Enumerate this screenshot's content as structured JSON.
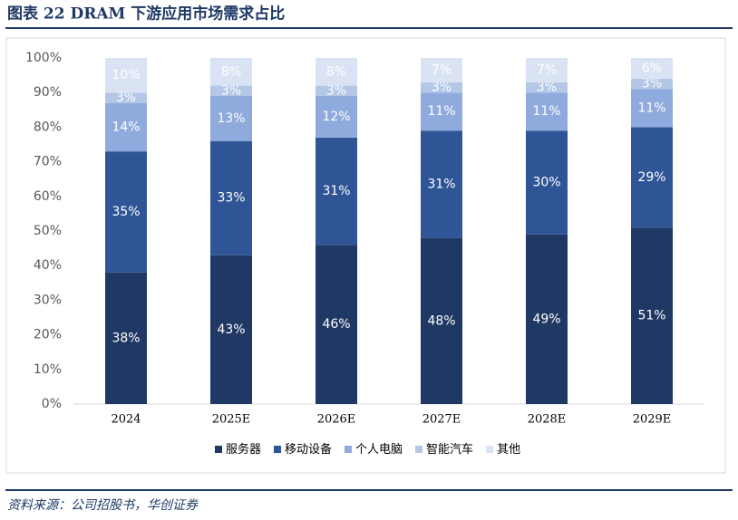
{
  "chart_data": {
    "type": "stacked_bar",
    "title": "图表 22  DRAM 下游应用市场需求占比",
    "source": "资料来源：公司招股书，华创证券",
    "categories": [
      "2024",
      "2025E",
      "2026E",
      "2027E",
      "2028E",
      "2029E"
    ],
    "series": [
      {
        "name": "服务器",
        "color": "#1f3864",
        "values": [
          38,
          43,
          46,
          48,
          49,
          51
        ],
        "value_labels": [
          "38%",
          "43%",
          "46%",
          "48%",
          "49%",
          "51%"
        ]
      },
      {
        "name": "移动设备",
        "color": "#2f5597",
        "values": [
          35,
          33,
          31,
          31,
          30,
          29
        ],
        "value_labels": [
          "35%",
          "33%",
          "31%",
          "31%",
          "30%",
          "29%"
        ]
      },
      {
        "name": "个人电脑",
        "color": "#8faadc",
        "values": [
          14,
          13,
          12,
          11,
          11,
          11
        ],
        "value_labels": [
          "14%",
          "13%",
          "12%",
          "11%",
          "11%",
          "11%"
        ]
      },
      {
        "name": "智能汽车",
        "color": "#b4c7e7",
        "values": [
          3,
          3,
          3,
          3,
          3,
          3
        ],
        "value_labels": [
          "3%",
          "3%",
          "3%",
          "3%",
          "3%",
          "3%"
        ]
      },
      {
        "name": "其他",
        "color": "#dae3f3",
        "values": [
          10,
          8,
          8,
          7,
          7,
          6
        ],
        "value_labels": [
          "10%",
          "8%",
          "8%",
          "7%",
          "7%",
          "6%"
        ]
      }
    ],
    "ylim": [
      0,
      100
    ],
    "yticks": [
      {
        "value": 0,
        "label": "0%"
      },
      {
        "value": 10,
        "label": "10%"
      },
      {
        "value": 20,
        "label": "20%"
      },
      {
        "value": 30,
        "label": "30%"
      },
      {
        "value": 40,
        "label": "40%"
      },
      {
        "value": 50,
        "label": "50%"
      },
      {
        "value": 60,
        "label": "60%"
      },
      {
        "value": 70,
        "label": "70%"
      },
      {
        "value": 80,
        "label": "80%"
      },
      {
        "value": 90,
        "label": "90%"
      },
      {
        "value": 100,
        "label": "100%"
      }
    ]
  }
}
